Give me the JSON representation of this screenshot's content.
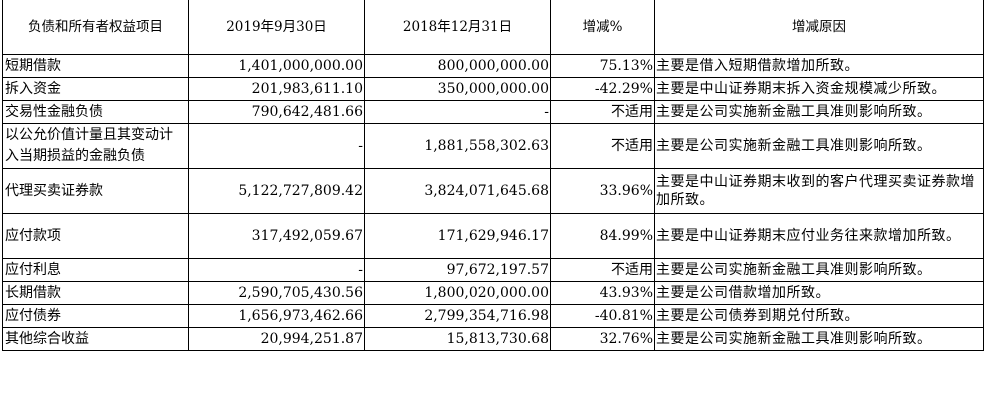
{
  "headers": [
    "负债和所有者权益项目",
    "2019年9月30日",
    "2018年12月31日",
    "增减%",
    "增减原因"
  ],
  "rows": [
    {
      "item": "短期借款",
      "v2019": "1,401,000,000.00",
      "v2018": "800,000,000.00",
      "pct": "75.13%",
      "reason": "主要是借入短期借款增加所致。"
    },
    {
      "item": "拆入资金",
      "v2019": "201,983,611.10",
      "v2018": "350,000,000.00",
      "pct": "-42.29%",
      "reason": "主要是中山证券期末拆入资金规模减少所致。"
    },
    {
      "item": "交易性金融负债",
      "v2019": "790,642,481.66",
      "v2018": "-",
      "pct": "不适用",
      "reason": "主要是公司实施新金融工具准则影响所致。"
    },
    {
      "item": "以公允价值计量且其变动计入当期损益的金融负债",
      "v2019": "-",
      "v2018": "1,881,558,302.63",
      "pct": "不适用",
      "reason": "主要是公司实施新金融工具准则影响所致。"
    },
    {
      "item": "代理买卖证券款",
      "v2019": "5,122,727,809.42",
      "v2018": "3,824,071,645.68",
      "pct": "33.96%",
      "reason": "主要是中山证券期末收到的客户代理买卖证券款增加所致。"
    },
    {
      "item": "应付款项",
      "v2019": "317,492,059.67",
      "v2018": "171,629,946.17",
      "pct": "84.99%",
      "reason": "主要是中山证券期末应付业务往来款增加所致。"
    },
    {
      "item": "应付利息",
      "v2019": "-",
      "v2018": "97,672,197.57",
      "pct": "不适用",
      "reason": "主要是公司实施新金融工具准则影响所致。"
    },
    {
      "item": "长期借款",
      "v2019": "2,590,705,430.56",
      "v2018": "1,800,020,000.00",
      "pct": "43.93%",
      "reason": "主要是公司借款增加所致。"
    },
    {
      "item": "应付债券",
      "v2019": "1,656,973,462.66",
      "v2018": "2,799,354,716.98",
      "pct": "-40.81%",
      "reason": "主要是公司债券到期兑付所致。"
    },
    {
      "item": "其他综合收益",
      "v2019": "20,994,251.87",
      "v2018": "15,813,730.68",
      "pct": "32.76%",
      "reason": "主要是公司实施新金融工具准则影响所致。"
    }
  ]
}
